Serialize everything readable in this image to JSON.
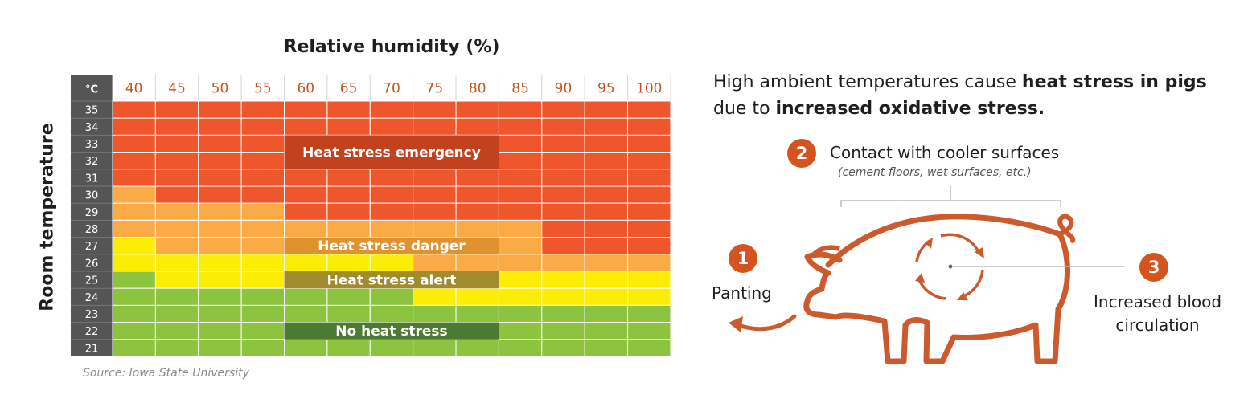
{
  "chart_data": {
    "type": "heatmap",
    "title": "",
    "xlabel": "Relative humidity (%)",
    "ylabel": "Room temperature",
    "corner_label": "°C",
    "x": [
      "40",
      "45",
      "50",
      "55",
      "60",
      "65",
      "70",
      "75",
      "80",
      "85",
      "90",
      "95",
      "100"
    ],
    "y": [
      "35",
      "34",
      "33",
      "32",
      "31",
      "30",
      "29",
      "28",
      "27",
      "26",
      "25",
      "24",
      "23",
      "22",
      "21"
    ],
    "levels": {
      "3": {
        "name": "Heat stress emergency",
        "color": "#f0562b"
      },
      "2": {
        "name": "Heat stress danger",
        "color": "#fbab45"
      },
      "1": {
        "name": "Heat stress alert",
        "color": "#fbed06"
      },
      "0": {
        "name": "No heat stress",
        "color": "#8cc33f"
      }
    },
    "values": [
      [
        3,
        3,
        3,
        3,
        3,
        3,
        3,
        3,
        3,
        3,
        3,
        3,
        3
      ],
      [
        3,
        3,
        3,
        3,
        3,
        3,
        3,
        3,
        3,
        3,
        3,
        3,
        3
      ],
      [
        3,
        3,
        3,
        3,
        3,
        3,
        3,
        3,
        3,
        3,
        3,
        3,
        3
      ],
      [
        3,
        3,
        3,
        3,
        3,
        3,
        3,
        3,
        3,
        3,
        3,
        3,
        3
      ],
      [
        3,
        3,
        3,
        3,
        3,
        3,
        3,
        3,
        3,
        3,
        3,
        3,
        3
      ],
      [
        2,
        3,
        3,
        3,
        3,
        3,
        3,
        3,
        3,
        3,
        3,
        3,
        3
      ],
      [
        2,
        2,
        2,
        2,
        3,
        3,
        3,
        3,
        3,
        3,
        3,
        3,
        3
      ],
      [
        2,
        2,
        2,
        2,
        2,
        2,
        2,
        2,
        2,
        2,
        3,
        3,
        3
      ],
      [
        1,
        2,
        2,
        2,
        2,
        2,
        2,
        2,
        2,
        2,
        3,
        3,
        3
      ],
      [
        1,
        1,
        1,
        1,
        1,
        1,
        1,
        2,
        2,
        2,
        2,
        2,
        2
      ],
      [
        0,
        1,
        1,
        1,
        1,
        1,
        1,
        1,
        1,
        1,
        1,
        1,
        1
      ],
      [
        0,
        0,
        0,
        0,
        0,
        0,
        0,
        1,
        1,
        1,
        1,
        1,
        1
      ],
      [
        0,
        0,
        0,
        0,
        0,
        0,
        0,
        0,
        0,
        0,
        0,
        0,
        0
      ],
      [
        0,
        0,
        0,
        0,
        0,
        0,
        0,
        0,
        0,
        0,
        0,
        0,
        0
      ],
      [
        0,
        0,
        0,
        0,
        0,
        0,
        0,
        0,
        0,
        0,
        0,
        0,
        0
      ]
    ],
    "zone_labels": [
      {
        "text": "Heat stress emergency",
        "row_from": "33",
        "row_to": "32",
        "bg": "#c2421f"
      },
      {
        "text": "Heat stress danger",
        "row_from": "27",
        "row_to": "27",
        "bg": "#e0922f"
      },
      {
        "text": "Heat stress alert",
        "row_from": "25",
        "row_to": "25",
        "bg": "#a08c2e"
      },
      {
        "text": "No heat stress",
        "row_from": "22",
        "row_to": "22",
        "bg": "#4c7a31"
      }
    ],
    "header_color": "#555555",
    "grid_line_color": "#ffffff"
  },
  "source": "Source: Iowa State University",
  "headline": {
    "t1": "High ambient temperatures cause ",
    "b1": "heat stress in pigs",
    "t2": " due to ",
    "b2": "increased oxidative stress."
  },
  "steps": [
    {
      "number": "1",
      "label": "Panting"
    },
    {
      "number": "2",
      "label": "Contact with cooler surfaces",
      "detail": "(cement floors, wet surfaces, etc.)"
    },
    {
      "number": "3",
      "label_line1": "Increased blood",
      "label_line2": "circulation"
    }
  ],
  "colors": {
    "accent": "#d4531f",
    "pig_outline": "#cc5a2c"
  }
}
